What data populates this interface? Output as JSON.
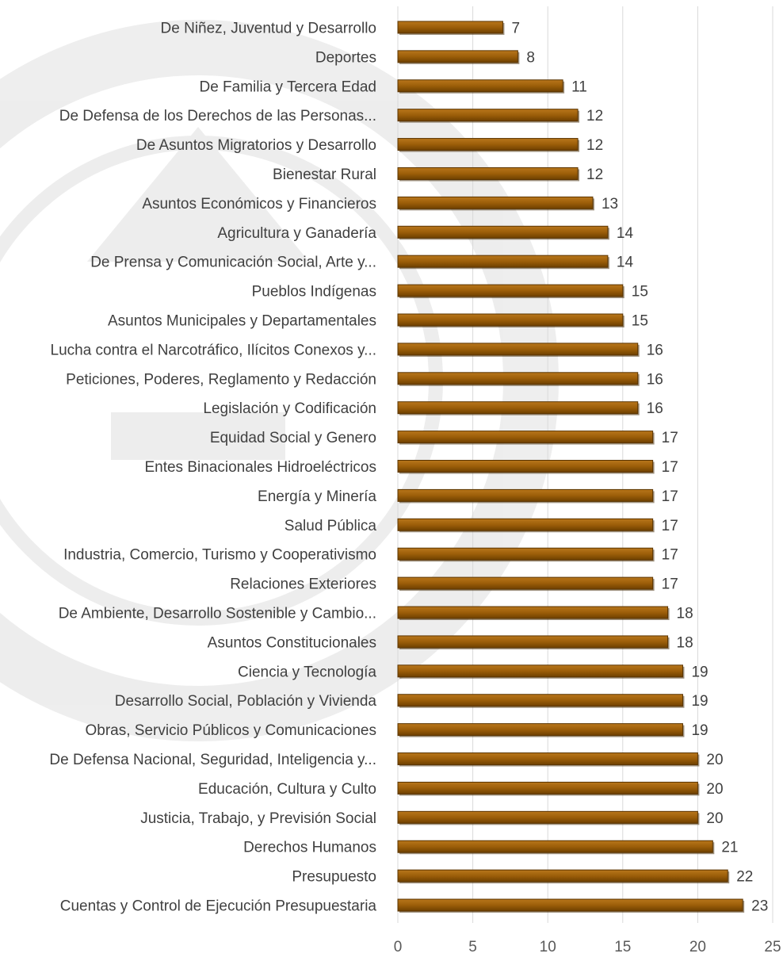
{
  "chart_data": {
    "type": "bar",
    "orientation": "horizontal",
    "categories": [
      "De Niñez, Juventud y Desarrollo",
      "Deportes",
      "De Familia y Tercera Edad",
      "De Defensa de los Derechos de las Personas...",
      "De Asuntos Migratorios y Desarrollo",
      "Bienestar Rural",
      "Asuntos Económicos y Financieros",
      "Agricultura y Ganadería",
      "De Prensa y Comunicación Social, Arte y...",
      "Pueblos Indígenas",
      "Asuntos Municipales y Departamentales",
      "Lucha contra el Narcotráfico, Ilícitos Conexos y...",
      "Peticiones, Poderes, Reglamento y Redacción",
      "Legislación y Codificación",
      "Equidad Social y Genero",
      "Entes Binacionales Hidroeléctricos",
      "Energía y Minería",
      "Salud Pública",
      "Industria, Comercio, Turismo y Cooperativismo",
      "Relaciones Exteriores",
      "De Ambiente, Desarrollo Sostenible y Cambio...",
      "Asuntos Constitucionales",
      "Ciencia y Tecnología",
      "Desarrollo Social, Población y Vivienda",
      "Obras, Servicio Públicos y Comunicaciones",
      "De Defensa Nacional, Seguridad, Inteligencia y...",
      "Educación, Cultura y Culto",
      "Justicia, Trabajo, y Previsión Social",
      "Derechos Humanos",
      "Presupuesto",
      "Cuentas y Control de Ejecución Presupuestaria"
    ],
    "values": [
      7,
      8,
      11,
      12,
      12,
      12,
      13,
      14,
      14,
      15,
      15,
      16,
      16,
      16,
      17,
      17,
      17,
      17,
      17,
      17,
      18,
      18,
      19,
      19,
      19,
      20,
      20,
      20,
      21,
      22,
      23
    ],
    "xlim": [
      0,
      25
    ],
    "xticks": [
      "0",
      "5",
      "10",
      "15",
      "20",
      "25"
    ],
    "grid": true,
    "data_labels": true,
    "bar_color": "#9c5e09",
    "bar_edge_color": "#5a3400",
    "grid_color": "#d9d9d9",
    "watermark": "faded university seal"
  }
}
